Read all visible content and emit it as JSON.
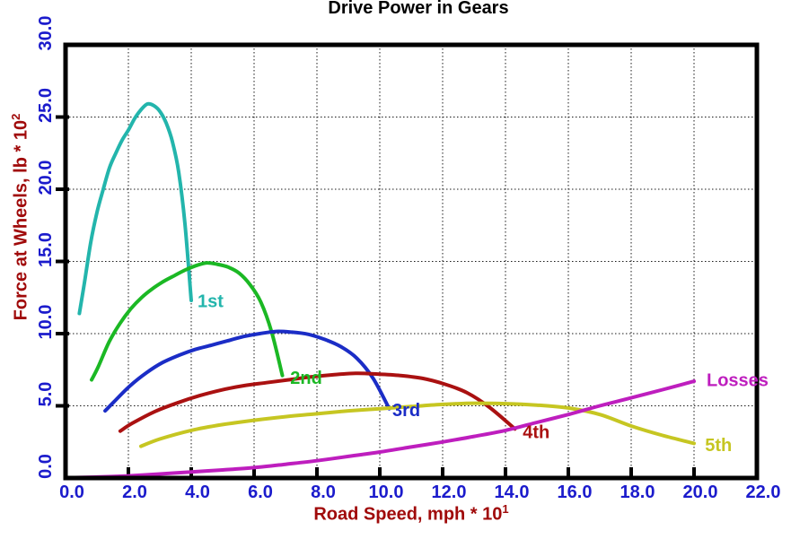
{
  "colors": {
    "background": "#ffffff",
    "frame": "#000000",
    "grid": "#1a1a1a",
    "tick_mark": "#000000",
    "tick_label": "#1b1bcc",
    "axis_title": "#a00a0a",
    "title": "#000000"
  },
  "chart_data": {
    "type": "line",
    "title": "Drive Power in Gears",
    "xlabel": "Road Speed, mph * 10^1",
    "ylabel": "Force at Wheels, lb * 10^2",
    "xlabel_base": "Road Speed, mph * 10",
    "xlabel_exp": "1",
    "ylabel_base": "Force at Wheels, lb * 10",
    "ylabel_exp": "2",
    "xlim": [
      0,
      22
    ],
    "ylim": [
      0,
      30
    ],
    "grid": true,
    "legend_position": "inline-labels",
    "xticks": [
      "0.0",
      "2.0",
      "4.0",
      "6.0",
      "8.0",
      "10.0",
      "12.0",
      "14.0",
      "16.0",
      "18.0",
      "20.0",
      "22.0"
    ],
    "yticks": [
      "0.0",
      "5.0",
      "10.0",
      "15.0",
      "20.0",
      "25.0",
      "30.0"
    ],
    "series": [
      {
        "name": "1st",
        "color": "#23b5ac",
        "label_at": [
          4.2,
          12.2
        ],
        "points": [
          [
            0.44,
            11.4
          ],
          [
            0.6,
            13.5
          ],
          [
            0.8,
            16.3
          ],
          [
            1.0,
            18.4
          ],
          [
            1.2,
            20.0
          ],
          [
            1.4,
            21.5
          ],
          [
            1.6,
            22.5
          ],
          [
            1.8,
            23.4
          ],
          [
            2.0,
            24.1
          ],
          [
            2.2,
            24.9
          ],
          [
            2.4,
            25.5
          ],
          [
            2.6,
            25.9
          ],
          [
            2.8,
            25.8
          ],
          [
            3.0,
            25.4
          ],
          [
            3.2,
            24.6
          ],
          [
            3.4,
            23.3
          ],
          [
            3.6,
            21.2
          ],
          [
            3.8,
            17.6
          ],
          [
            4.0,
            12.3
          ]
        ]
      },
      {
        "name": "2nd",
        "color": "#1bb824",
        "label_at": [
          7.15,
          6.9
        ],
        "points": [
          [
            0.83,
            6.8
          ],
          [
            1.04,
            7.7
          ],
          [
            1.38,
            9.4
          ],
          [
            1.73,
            10.7
          ],
          [
            2.07,
            11.7
          ],
          [
            2.42,
            12.5
          ],
          [
            2.76,
            13.1
          ],
          [
            3.11,
            13.6
          ],
          [
            3.45,
            14.0
          ],
          [
            3.8,
            14.4
          ],
          [
            4.14,
            14.7
          ],
          [
            4.49,
            14.9
          ],
          [
            4.83,
            14.8
          ],
          [
            5.18,
            14.6
          ],
          [
            5.52,
            14.2
          ],
          [
            5.87,
            13.4
          ],
          [
            6.21,
            12.2
          ],
          [
            6.56,
            10.1
          ],
          [
            6.9,
            7.1
          ]
        ]
      },
      {
        "name": "3rd",
        "color": "#1b2dc6",
        "label_at": [
          10.4,
          4.65
        ],
        "points": [
          [
            1.26,
            4.65
          ],
          [
            1.55,
            5.3
          ],
          [
            2.06,
            6.4
          ],
          [
            2.58,
            7.3
          ],
          [
            3.09,
            8.0
          ],
          [
            3.61,
            8.5
          ],
          [
            4.12,
            8.9
          ],
          [
            4.64,
            9.2
          ],
          [
            5.15,
            9.5
          ],
          [
            5.67,
            9.8
          ],
          [
            6.18,
            10.0
          ],
          [
            6.7,
            10.15
          ],
          [
            7.21,
            10.1
          ],
          [
            7.73,
            9.95
          ],
          [
            8.24,
            9.6
          ],
          [
            8.76,
            9.1
          ],
          [
            9.27,
            8.3
          ],
          [
            9.79,
            6.9
          ],
          [
            10.3,
            4.8
          ]
        ]
      },
      {
        "name": "4th",
        "color": "#aa1111",
        "label_at": [
          14.55,
          3.15
        ],
        "points": [
          [
            1.74,
            3.25
          ],
          [
            2.13,
            3.8
          ],
          [
            2.84,
            4.6
          ],
          [
            3.55,
            5.2
          ],
          [
            4.26,
            5.7
          ],
          [
            4.97,
            6.1
          ],
          [
            5.68,
            6.4
          ],
          [
            6.39,
            6.6
          ],
          [
            7.1,
            6.8
          ],
          [
            7.81,
            7.0
          ],
          [
            8.52,
            7.15
          ],
          [
            9.23,
            7.25
          ],
          [
            9.94,
            7.2
          ],
          [
            10.65,
            7.1
          ],
          [
            11.36,
            6.9
          ],
          [
            12.07,
            6.5
          ],
          [
            12.78,
            5.9
          ],
          [
            13.49,
            4.9
          ],
          [
            14.3,
            3.4
          ]
        ]
      },
      {
        "name": "5th",
        "color": "#c6c622",
        "label_at": [
          20.35,
          2.25
        ],
        "points": [
          [
            2.4,
            2.2
          ],
          [
            3.0,
            2.7
          ],
          [
            4.0,
            3.3
          ],
          [
            5.0,
            3.7
          ],
          [
            6.0,
            4.0
          ],
          [
            7.0,
            4.25
          ],
          [
            8.0,
            4.45
          ],
          [
            9.0,
            4.65
          ],
          [
            10.0,
            4.8
          ],
          [
            11.0,
            4.95
          ],
          [
            12.0,
            5.1
          ],
          [
            13.0,
            5.18
          ],
          [
            14.0,
            5.15
          ],
          [
            15.0,
            5.05
          ],
          [
            16.0,
            4.85
          ],
          [
            17.0,
            4.4
          ],
          [
            18.0,
            3.6
          ],
          [
            19.0,
            2.95
          ],
          [
            20.0,
            2.4
          ]
        ]
      },
      {
        "name": "Losses",
        "color": "#be1ebe",
        "label_at": [
          20.4,
          6.75
        ],
        "points": [
          [
            0.3,
            0.03
          ],
          [
            1.0,
            0.07
          ],
          [
            2.0,
            0.15
          ],
          [
            3.0,
            0.28
          ],
          [
            4.0,
            0.42
          ],
          [
            5.0,
            0.56
          ],
          [
            6.0,
            0.72
          ],
          [
            7.0,
            0.95
          ],
          [
            8.0,
            1.2
          ],
          [
            9.0,
            1.5
          ],
          [
            10.0,
            1.8
          ],
          [
            11.0,
            2.15
          ],
          [
            12.0,
            2.5
          ],
          [
            13.0,
            2.88
          ],
          [
            14.0,
            3.3
          ],
          [
            15.0,
            3.85
          ],
          [
            16.0,
            4.4
          ],
          [
            17.0,
            5.0
          ],
          [
            18.0,
            5.55
          ],
          [
            19.0,
            6.12
          ],
          [
            20.0,
            6.7
          ]
        ]
      }
    ]
  }
}
